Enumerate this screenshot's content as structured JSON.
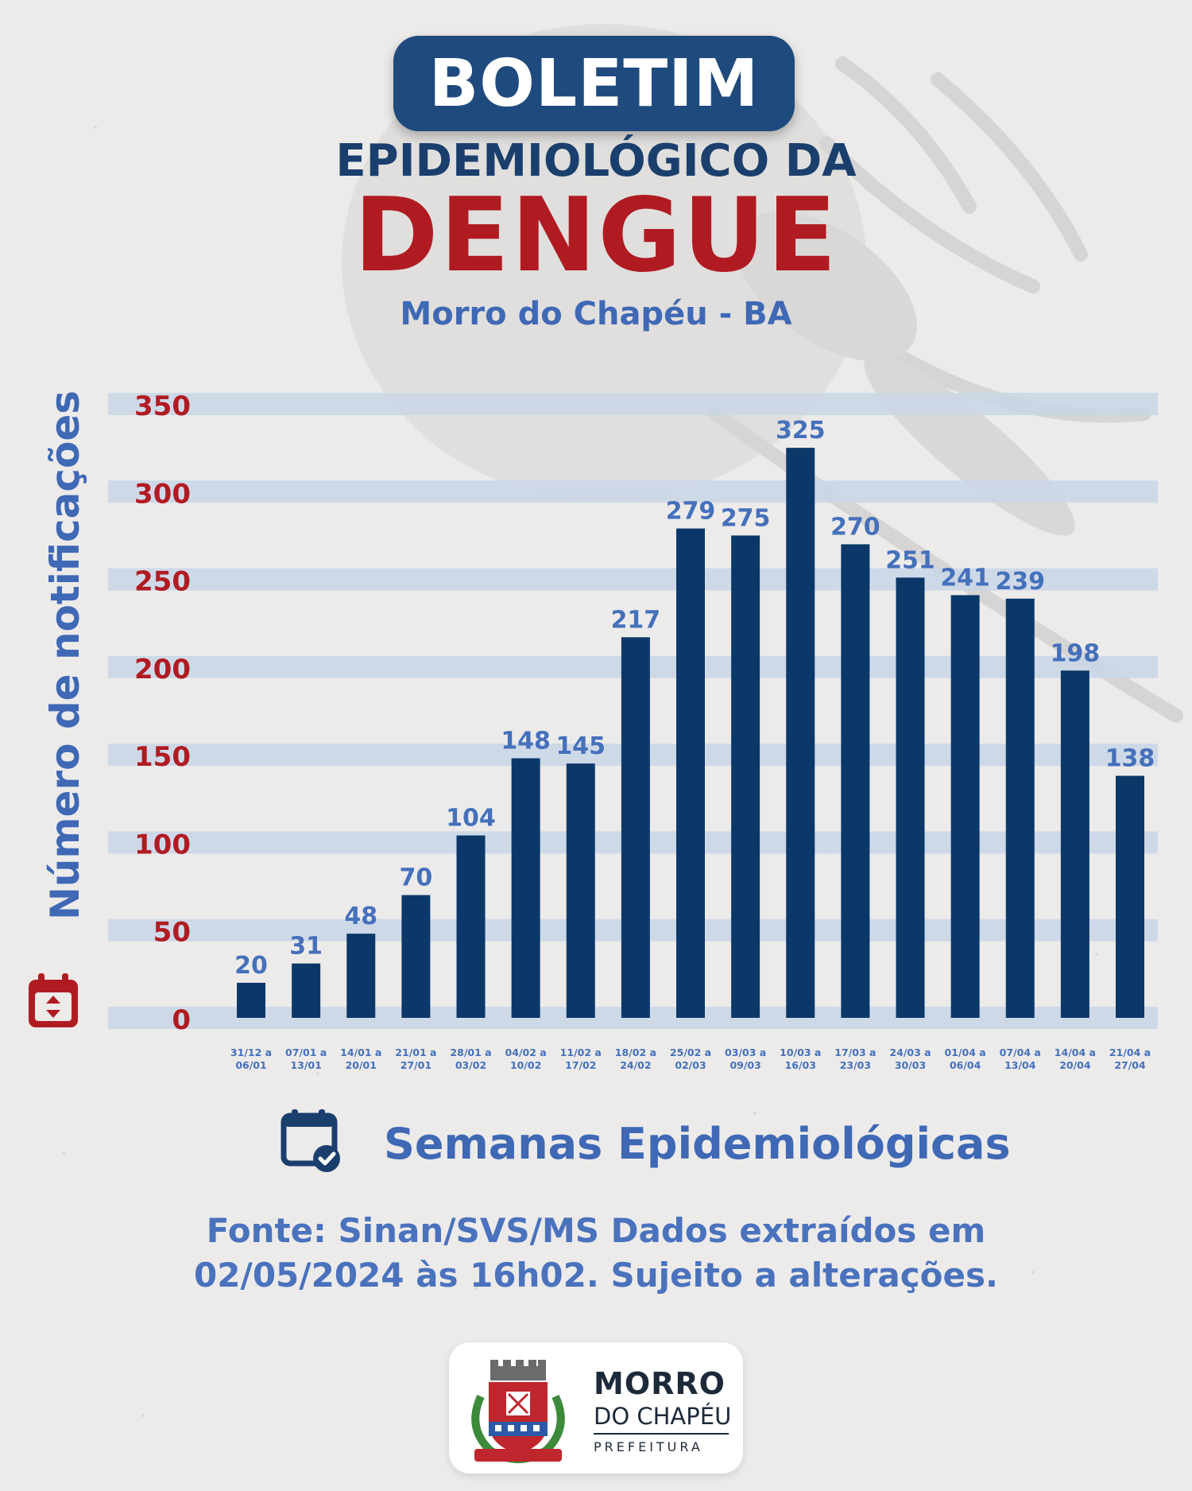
{
  "header": {
    "pill_title": "BOLETIM",
    "subtitle": "EPIDEMIOLÓGICO DA",
    "main_title": "DENGUE",
    "place": "Morro do Chapéu - BA"
  },
  "chart_data": {
    "type": "bar",
    "ylabel": "Número de notificações",
    "xlabel": "Semanas Epidemiológicas",
    "ylim": [
      0,
      350
    ],
    "yticks": [
      "0",
      "50",
      "100",
      "150",
      "200",
      "250",
      "300",
      "350"
    ],
    "grid": true,
    "categories": [
      [
        "31/12 a",
        "06/01"
      ],
      [
        "07/01 a",
        "13/01"
      ],
      [
        "14/01 a",
        "20/01"
      ],
      [
        "21/01 a",
        "27/01"
      ],
      [
        "28/01 a",
        "03/02"
      ],
      [
        "04/02 a",
        "10/02"
      ],
      [
        "11/02 a",
        "17/02"
      ],
      [
        "18/02 a",
        "24/02"
      ],
      [
        "25/02 a",
        "02/03"
      ],
      [
        "03/03 a",
        "09/03"
      ],
      [
        "10/03 a",
        "16/03"
      ],
      [
        "17/03 a",
        "23/03"
      ],
      [
        "24/03 a",
        "30/03"
      ],
      [
        "01/04 a",
        "06/04"
      ],
      [
        "07/04 a",
        "13/04"
      ],
      [
        "14/04 a",
        "20/04"
      ],
      [
        "21/04 a",
        "27/04"
      ]
    ],
    "values": [
      20,
      31,
      48,
      70,
      104,
      148,
      145,
      217,
      279,
      275,
      325,
      270,
      251,
      241,
      239,
      198,
      138
    ],
    "bar_color": "#0b3868",
    "value_label_color": "#4570bb",
    "ytick_color": "#b01b22",
    "grid_color": "#c9d6e8"
  },
  "footer": {
    "source_line1": "Fonte: Sinan/SVS/MS Dados extraídos em",
    "source_line2": "02/05/2024 às 16h02. Sujeito a alterações."
  },
  "logo": {
    "line1": "MORRO",
    "line2": "DO CHAPÉU",
    "line3": "PREFEITURA",
    "crest_text": "MORRO DO CHAPÉU"
  },
  "icons": {
    "y_axis_icon": "calendar-icon",
    "x_axis_icon": "calendar-check-icon"
  }
}
